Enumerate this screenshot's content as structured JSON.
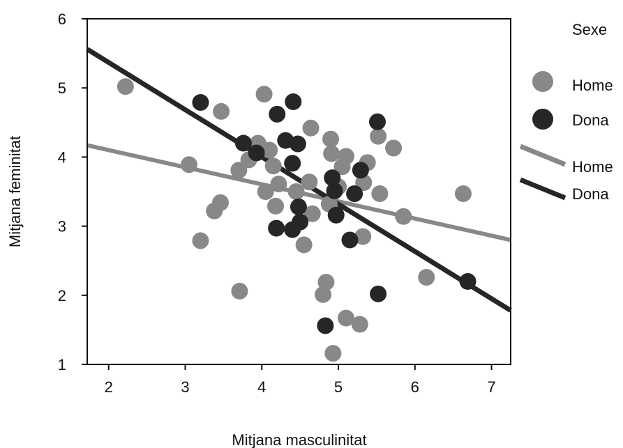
{
  "chart_data": {
    "type": "scatter",
    "xlabel": "Mitjana masculinitat",
    "ylabel": "Mitjana feminitat",
    "xlim": [
      1.72,
      7.25
    ],
    "ylim": [
      1,
      6
    ],
    "x_ticks": [
      "2",
      "3",
      "4",
      "5",
      "6",
      "7"
    ],
    "y_ticks": [
      "1",
      "2",
      "3",
      "4",
      "5",
      "6"
    ],
    "grid": false,
    "legend": {
      "title": "Sexe",
      "placement": "right",
      "points": [
        {
          "label": "Home",
          "color": "#888888"
        },
        {
          "label": "Dona",
          "color": "#262626"
        }
      ],
      "lines": [
        {
          "label": "Home",
          "color": "#888888"
        },
        {
          "label": "Dona",
          "color": "#262626"
        }
      ]
    },
    "series": [
      {
        "name": "Home",
        "color": "#888888",
        "points": [
          [
            2.22,
            5.02
          ],
          [
            3.05,
            3.89
          ],
          [
            3.2,
            2.79
          ],
          [
            3.38,
            3.22
          ],
          [
            3.46,
            3.34
          ],
          [
            3.47,
            4.66
          ],
          [
            3.7,
            3.81
          ],
          [
            3.71,
            2.06
          ],
          [
            3.83,
            3.96
          ],
          [
            3.95,
            4.2
          ],
          [
            4.03,
            4.91
          ],
          [
            4.05,
            3.5
          ],
          [
            4.1,
            4.1
          ],
          [
            4.15,
            3.87
          ],
          [
            4.18,
            3.29
          ],
          [
            4.22,
            3.61
          ],
          [
            4.45,
            3.5
          ],
          [
            4.55,
            2.73
          ],
          [
            4.62,
            3.64
          ],
          [
            4.64,
            4.42
          ],
          [
            4.66,
            3.18
          ],
          [
            4.8,
            2.01
          ],
          [
            4.84,
            2.19
          ],
          [
            4.88,
            3.32
          ],
          [
            4.9,
            4.26
          ],
          [
            4.91,
            4.05
          ],
          [
            4.93,
            1.16
          ],
          [
            5.0,
            3.57
          ],
          [
            5.05,
            3.86
          ],
          [
            5.1,
            4.01
          ],
          [
            5.1,
            1.67
          ],
          [
            5.28,
            1.58
          ],
          [
            5.33,
            3.63
          ],
          [
            5.32,
            2.85
          ],
          [
            5.38,
            3.92
          ],
          [
            5.52,
            4.3
          ],
          [
            5.54,
            3.47
          ],
          [
            5.72,
            4.13
          ],
          [
            5.85,
            3.14
          ],
          [
            6.15,
            2.26
          ],
          [
            6.63,
            3.47
          ]
        ]
      },
      {
        "name": "Dona",
        "color": "#262626",
        "points": [
          [
            3.2,
            4.79
          ],
          [
            3.76,
            4.2
          ],
          [
            3.93,
            4.06
          ],
          [
            4.2,
            4.62
          ],
          [
            4.19,
            2.97
          ],
          [
            4.31,
            4.24
          ],
          [
            4.4,
            2.95
          ],
          [
            4.41,
            4.8
          ],
          [
            4.4,
            3.91
          ],
          [
            4.47,
            4.19
          ],
          [
            4.48,
            3.28
          ],
          [
            4.5,
            3.06
          ],
          [
            4.83,
            1.56
          ],
          [
            4.92,
            3.7
          ],
          [
            4.95,
            3.51
          ],
          [
            4.97,
            3.16
          ],
          [
            5.15,
            2.8
          ],
          [
            5.21,
            3.47
          ],
          [
            5.29,
            3.81
          ],
          [
            5.51,
            4.51
          ],
          [
            5.52,
            2.02
          ],
          [
            6.69,
            2.2
          ]
        ]
      }
    ],
    "fit_lines": [
      {
        "name": "Home",
        "color": "#888888",
        "points": [
          [
            1.72,
            4.17
          ],
          [
            7.25,
            2.8
          ]
        ]
      },
      {
        "name": "Dona",
        "color": "#262626",
        "points": [
          [
            1.72,
            5.56
          ],
          [
            7.25,
            1.78
          ]
        ]
      }
    ]
  }
}
